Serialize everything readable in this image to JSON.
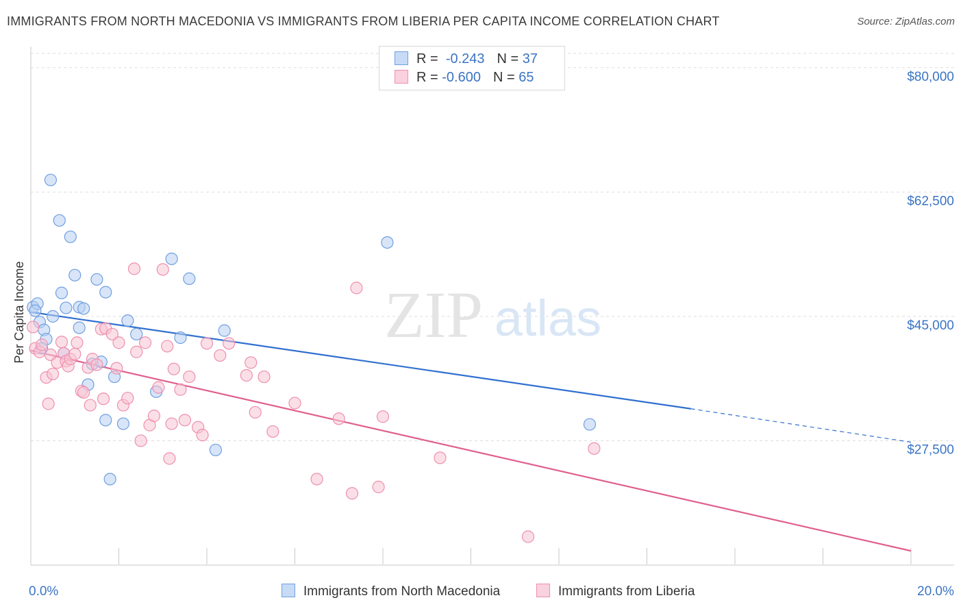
{
  "title": "IMMIGRANTS FROM NORTH MACEDONIA VS IMMIGRANTS FROM LIBERIA PER CAPITA INCOME CORRELATION CHART",
  "source": "Source: ZipAtlas.com",
  "watermark": {
    "zip": "ZIP",
    "atlas": "atlas"
  },
  "legend": {
    "series1": {
      "r_label": "R =",
      "r_value": "-0.243",
      "n_label": "N =",
      "n_value": "37"
    },
    "series2": {
      "r_label": "R =",
      "r_value": "-0.600",
      "n_label": "N =",
      "n_value": "65"
    }
  },
  "colors": {
    "blue_fill": "#b8d0f2",
    "blue_stroke": "#6f9fe0",
    "blue_line": "#2f6fcf",
    "pink_fill": "#f7c4d4",
    "pink_stroke": "#ee8fae",
    "pink_line": "#e05e8e",
    "tick_label": "#3a74c4",
    "grid": "#dddddd"
  },
  "chart_data": {
    "type": "scatter",
    "title": "IMMIGRANTS FROM NORTH MACEDONIA VS IMMIGRANTS FROM LIBERIA PER CAPITA INCOME CORRELATION CHART",
    "xlabel": "",
    "ylabel": "Per Capita Income",
    "xlim": [
      0,
      20
    ],
    "ylim": [
      10000,
      82000
    ],
    "x_tick_labels": [
      "0.0%",
      "20.0%"
    ],
    "y_ticks": [
      27500,
      45000,
      62500,
      80000
    ],
    "y_tick_labels": [
      "$27,500",
      "$45,000",
      "$62,500",
      "$80,000"
    ],
    "series": [
      {
        "name": "Immigrants from North Macedonia",
        "color": "#6f9fe0",
        "points": [
          [
            0.05,
            46300
          ],
          [
            0.15,
            46800
          ],
          [
            0.2,
            44200
          ],
          [
            0.3,
            43100
          ],
          [
            0.35,
            41800
          ],
          [
            0.45,
            64200
          ],
          [
            0.5,
            45000
          ],
          [
            0.65,
            58500
          ],
          [
            0.7,
            48300
          ],
          [
            0.75,
            39800
          ],
          [
            0.8,
            46200
          ],
          [
            0.9,
            56200
          ],
          [
            1.0,
            50800
          ],
          [
            1.1,
            43400
          ],
          [
            1.1,
            46300
          ],
          [
            1.2,
            46100
          ],
          [
            1.3,
            35400
          ],
          [
            1.4,
            38300
          ],
          [
            1.5,
            50200
          ],
          [
            1.7,
            48400
          ],
          [
            1.7,
            30400
          ],
          [
            1.8,
            22100
          ],
          [
            1.9,
            36500
          ],
          [
            2.1,
            29900
          ],
          [
            2.2,
            44400
          ],
          [
            2.4,
            42500
          ],
          [
            2.85,
            34400
          ],
          [
            3.2,
            53100
          ],
          [
            3.4,
            42000
          ],
          [
            3.6,
            50300
          ],
          [
            4.2,
            26200
          ],
          [
            4.4,
            43000
          ],
          [
            8.1,
            55400
          ],
          [
            12.7,
            29800
          ],
          [
            0.1,
            45800
          ],
          [
            0.25,
            40500
          ],
          [
            1.6,
            38600
          ]
        ]
      },
      {
        "name": "Immigrants from Liberia",
        "color": "#ee8fae",
        "points": [
          [
            0.05,
            43500
          ],
          [
            0.1,
            40500
          ],
          [
            0.2,
            40000
          ],
          [
            0.25,
            41000
          ],
          [
            0.35,
            36400
          ],
          [
            0.4,
            32700
          ],
          [
            0.45,
            39600
          ],
          [
            0.5,
            36900
          ],
          [
            0.6,
            38500
          ],
          [
            0.7,
            41400
          ],
          [
            0.75,
            39800
          ],
          [
            0.8,
            38700
          ],
          [
            0.85,
            38000
          ],
          [
            0.9,
            39000
          ],
          [
            1.0,
            39700
          ],
          [
            1.05,
            41300
          ],
          [
            1.15,
            34500
          ],
          [
            1.2,
            34300
          ],
          [
            1.3,
            37800
          ],
          [
            1.35,
            32500
          ],
          [
            1.4,
            39000
          ],
          [
            1.5,
            38200
          ],
          [
            1.6,
            43200
          ],
          [
            1.65,
            33400
          ],
          [
            1.7,
            43300
          ],
          [
            1.85,
            42500
          ],
          [
            1.95,
            37700
          ],
          [
            2.0,
            41300
          ],
          [
            2.1,
            32500
          ],
          [
            2.2,
            33500
          ],
          [
            2.35,
            51700
          ],
          [
            2.4,
            40000
          ],
          [
            2.5,
            27500
          ],
          [
            2.6,
            41300
          ],
          [
            2.7,
            29700
          ],
          [
            2.8,
            31000
          ],
          [
            2.9,
            35000
          ],
          [
            3.0,
            51600
          ],
          [
            3.1,
            40800
          ],
          [
            3.15,
            25000
          ],
          [
            3.2,
            29900
          ],
          [
            3.25,
            37600
          ],
          [
            3.4,
            34700
          ],
          [
            3.5,
            30400
          ],
          [
            3.6,
            36500
          ],
          [
            3.8,
            29400
          ],
          [
            3.9,
            28300
          ],
          [
            4.0,
            41200
          ],
          [
            4.3,
            39500
          ],
          [
            4.5,
            41200
          ],
          [
            4.9,
            36700
          ],
          [
            5.0,
            38500
          ],
          [
            5.1,
            31500
          ],
          [
            5.3,
            36500
          ],
          [
            5.5,
            28800
          ],
          [
            6.0,
            32800
          ],
          [
            6.5,
            22100
          ],
          [
            7.0,
            30600
          ],
          [
            7.3,
            20100
          ],
          [
            7.4,
            49000
          ],
          [
            7.9,
            21000
          ],
          [
            8.0,
            30900
          ],
          [
            9.3,
            25100
          ],
          [
            11.3,
            14000
          ],
          [
            12.8,
            26400
          ]
        ]
      }
    ],
    "trend_lines": [
      {
        "series": "Immigrants from North Macedonia",
        "x0": 0,
        "y0": 45600,
        "x1": 15,
        "y1": 32000,
        "dashed_to_x": 20,
        "dashed_to_y": 27300
      },
      {
        "series": "Immigrants from Liberia",
        "x0": 0,
        "y0": 40200,
        "x1": 20,
        "y1": 12000
      }
    ]
  }
}
